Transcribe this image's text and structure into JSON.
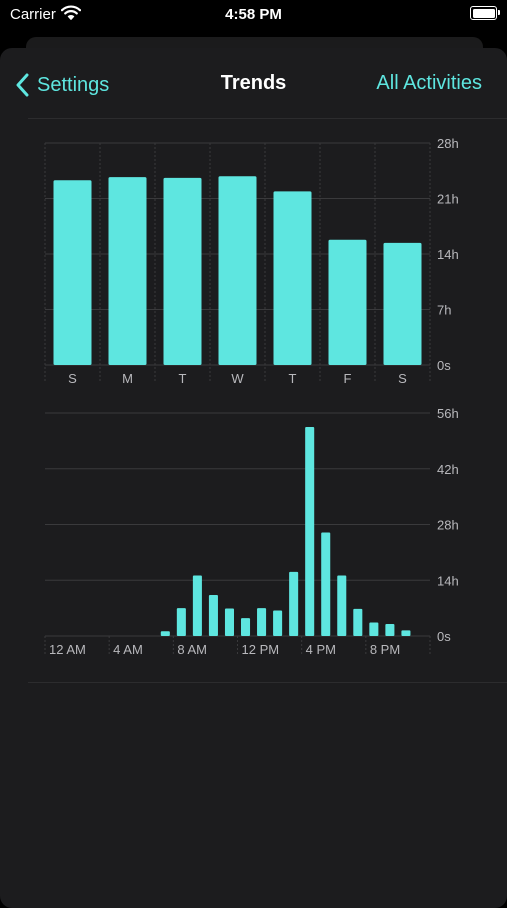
{
  "status_bar": {
    "carrier": "Carrier",
    "time": "4:58 PM"
  },
  "nav": {
    "back_label": "Settings",
    "title": "Trends",
    "right_label": "All Activities"
  },
  "colors": {
    "accent": "#5ee6e0",
    "bar": "#5ee6e0",
    "background": "#1c1c1e",
    "grid": "#3a3a3c"
  },
  "chart_data": [
    {
      "type": "bar",
      "categories": [
        "S",
        "M",
        "T",
        "W",
        "T",
        "F",
        "S"
      ],
      "values": [
        23.3,
        23.7,
        23.6,
        23.8,
        21.9,
        15.8,
        15.4
      ],
      "ylim": [
        0,
        28
      ],
      "yticks": [
        0,
        7,
        14,
        21,
        28
      ],
      "ytick_labels": [
        "0s",
        "7h",
        "14h",
        "21h",
        "28h"
      ],
      "grid": true
    },
    {
      "type": "bar",
      "x": [
        0,
        1,
        2,
        3,
        4,
        5,
        6,
        7,
        8,
        9,
        10,
        11,
        12,
        13,
        14,
        15,
        16,
        17,
        18,
        19,
        20,
        21,
        22,
        23
      ],
      "values": [
        0,
        0,
        0,
        0,
        0,
        0,
        0,
        1.2,
        7,
        15.2,
        10.3,
        6.9,
        4.5,
        7,
        6.4,
        16.1,
        52.5,
        26,
        15.2,
        6.8,
        3.4,
        3,
        1.4,
        0
      ],
      "xtick_labels": [
        "12 AM",
        "4 AM",
        "8 AM",
        "12 PM",
        "4 PM",
        "8 PM"
      ],
      "xtick_positions": [
        0,
        4,
        8,
        12,
        16,
        20
      ],
      "ylim": [
        0,
        56
      ],
      "yticks": [
        0,
        14,
        28,
        42,
        56
      ],
      "ytick_labels": [
        "0s",
        "14h",
        "28h",
        "42h",
        "56h"
      ],
      "grid": true
    }
  ]
}
